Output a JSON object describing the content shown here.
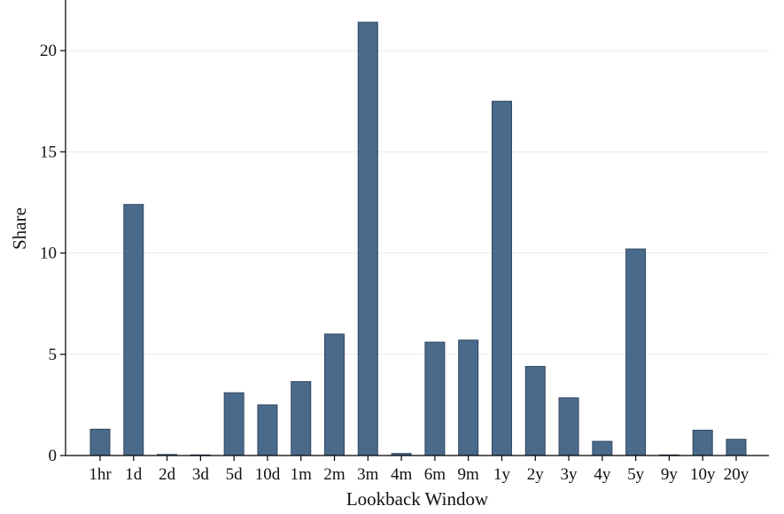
{
  "chart_data": {
    "type": "bar",
    "title": "",
    "xlabel": "Lookback Window",
    "ylabel": "Share",
    "ylim": [
      0,
      22.5
    ],
    "yticks": [
      0,
      5,
      10,
      15,
      20
    ],
    "grid": true,
    "bar_color": "#4a6a8c",
    "categories": [
      "1hr",
      "1d",
      "2d",
      "3d",
      "5d",
      "10d",
      "1m",
      "2m",
      "3m",
      "4m",
      "6m",
      "9m",
      "1y",
      "2y",
      "3y",
      "4y",
      "5y",
      "9y",
      "10y",
      "20y"
    ],
    "values": [
      1.3,
      12.4,
      0.05,
      0.03,
      3.1,
      2.5,
      3.65,
      6.0,
      21.4,
      0.1,
      5.6,
      5.7,
      17.5,
      4.4,
      2.85,
      0.7,
      10.2,
      0.03,
      1.25,
      0.8
    ]
  }
}
